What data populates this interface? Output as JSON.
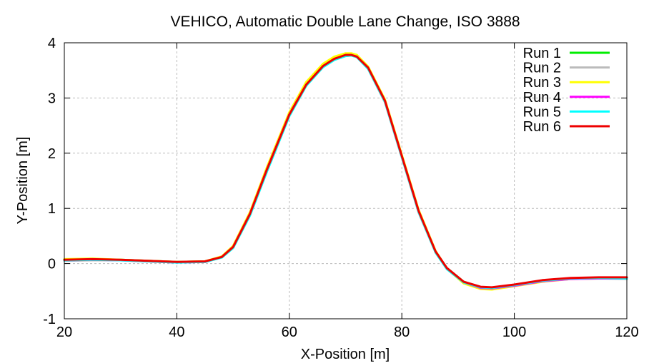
{
  "chart_data": {
    "type": "line",
    "title": "VEHICO, Automatic Double Lane Change, ISO 3888",
    "xlabel": "X-Position [m]",
    "ylabel": "Y-Position [m]",
    "xlim": [
      20,
      120
    ],
    "ylim": [
      -1,
      4
    ],
    "xticks": [
      "20",
      "40",
      "60",
      "80",
      "100",
      "120"
    ],
    "yticks": [
      "-1",
      "0",
      "1",
      "2",
      "3",
      "4"
    ],
    "grid": true,
    "legend_position": "top-right",
    "series": [
      {
        "name": "Run 1",
        "color": "#00ee00",
        "x": [
          20,
          25,
          30,
          35,
          40,
          45,
          48,
          50,
          53,
          56,
          60,
          63,
          66,
          68,
          70,
          71,
          72,
          74,
          77,
          80,
          83,
          86,
          88,
          91,
          94,
          96,
          100,
          105,
          110,
          115,
          120
        ],
        "y": [
          0.07,
          0.08,
          0.07,
          0.05,
          0.03,
          0.04,
          0.12,
          0.3,
          0.9,
          1.7,
          2.7,
          3.25,
          3.58,
          3.71,
          3.78,
          3.79,
          3.76,
          3.55,
          2.95,
          1.95,
          0.95,
          0.22,
          -0.08,
          -0.33,
          -0.43,
          -0.44,
          -0.39,
          -0.31,
          -0.27,
          -0.26,
          -0.26
        ]
      },
      {
        "name": "Run 2",
        "color": "#bbbbbb",
        "x": [
          20,
          25,
          30,
          35,
          40,
          45,
          48,
          50,
          53,
          56,
          60,
          63,
          66,
          68,
          70,
          71,
          72,
          74,
          77,
          80,
          83,
          86,
          88,
          91,
          94,
          96,
          100,
          105,
          110,
          115,
          120
        ],
        "y": [
          0.05,
          0.06,
          0.06,
          0.04,
          0.02,
          0.03,
          0.11,
          0.29,
          0.88,
          1.67,
          2.68,
          3.23,
          3.56,
          3.69,
          3.76,
          3.77,
          3.74,
          3.53,
          2.92,
          1.92,
          0.92,
          0.2,
          -0.1,
          -0.35,
          -0.44,
          -0.45,
          -0.4,
          -0.32,
          -0.28,
          -0.27,
          -0.28
        ]
      },
      {
        "name": "Run 3",
        "color": "#ffff00",
        "x": [
          20,
          25,
          30,
          35,
          40,
          45,
          48,
          50,
          53,
          56,
          60,
          63,
          66,
          68,
          70,
          71,
          72,
          74,
          77,
          80,
          83,
          86,
          88,
          91,
          94,
          96,
          100,
          105,
          110,
          115,
          120
        ],
        "y": [
          0.08,
          0.09,
          0.07,
          0.05,
          0.03,
          0.04,
          0.13,
          0.32,
          0.93,
          1.74,
          2.74,
          3.29,
          3.62,
          3.75,
          3.81,
          3.81,
          3.78,
          3.57,
          2.97,
          1.97,
          0.97,
          0.23,
          -0.09,
          -0.36,
          -0.46,
          -0.47,
          -0.41,
          -0.33,
          -0.28,
          -0.27,
          -0.27
        ]
      },
      {
        "name": "Run 4",
        "color": "#ff00ff",
        "x": [
          20,
          25,
          30,
          35,
          40,
          45,
          48,
          50,
          53,
          56,
          60,
          63,
          66,
          68,
          70,
          71,
          72,
          74,
          77,
          80,
          83,
          86,
          88,
          91,
          94,
          96,
          100,
          105,
          110,
          115,
          120
        ],
        "y": [
          0.06,
          0.07,
          0.06,
          0.04,
          0.02,
          0.03,
          0.12,
          0.3,
          0.9,
          1.7,
          2.7,
          3.24,
          3.57,
          3.7,
          3.77,
          3.78,
          3.75,
          3.54,
          2.94,
          1.94,
          0.94,
          0.21,
          -0.09,
          -0.34,
          -0.44,
          -0.45,
          -0.4,
          -0.32,
          -0.28,
          -0.27,
          -0.27
        ]
      },
      {
        "name": "Run 5",
        "color": "#00ffff",
        "x": [
          20,
          25,
          30,
          35,
          40,
          45,
          48,
          50,
          53,
          56,
          60,
          63,
          66,
          68,
          70,
          71,
          72,
          74,
          77,
          80,
          83,
          86,
          88,
          91,
          94,
          96,
          100,
          105,
          110,
          115,
          120
        ],
        "y": [
          0.06,
          0.07,
          0.06,
          0.04,
          0.02,
          0.03,
          0.11,
          0.28,
          0.87,
          1.66,
          2.67,
          3.22,
          3.56,
          3.69,
          3.76,
          3.77,
          3.74,
          3.53,
          2.93,
          1.93,
          0.93,
          0.2,
          -0.1,
          -0.34,
          -0.43,
          -0.44,
          -0.39,
          -0.31,
          -0.27,
          -0.26,
          -0.27
        ]
      },
      {
        "name": "Run 6",
        "color": "#ee0000",
        "x": [
          20,
          25,
          30,
          35,
          40,
          45,
          48,
          50,
          53,
          56,
          60,
          63,
          66,
          68,
          70,
          71,
          72,
          74,
          77,
          80,
          83,
          86,
          88,
          91,
          94,
          96,
          100,
          105,
          110,
          115,
          120
        ],
        "y": [
          0.07,
          0.08,
          0.07,
          0.05,
          0.03,
          0.04,
          0.12,
          0.3,
          0.9,
          1.7,
          2.7,
          3.24,
          3.58,
          3.71,
          3.78,
          3.78,
          3.75,
          3.55,
          2.95,
          1.95,
          0.95,
          0.22,
          -0.08,
          -0.33,
          -0.42,
          -0.43,
          -0.38,
          -0.3,
          -0.26,
          -0.25,
          -0.25
        ]
      }
    ]
  }
}
